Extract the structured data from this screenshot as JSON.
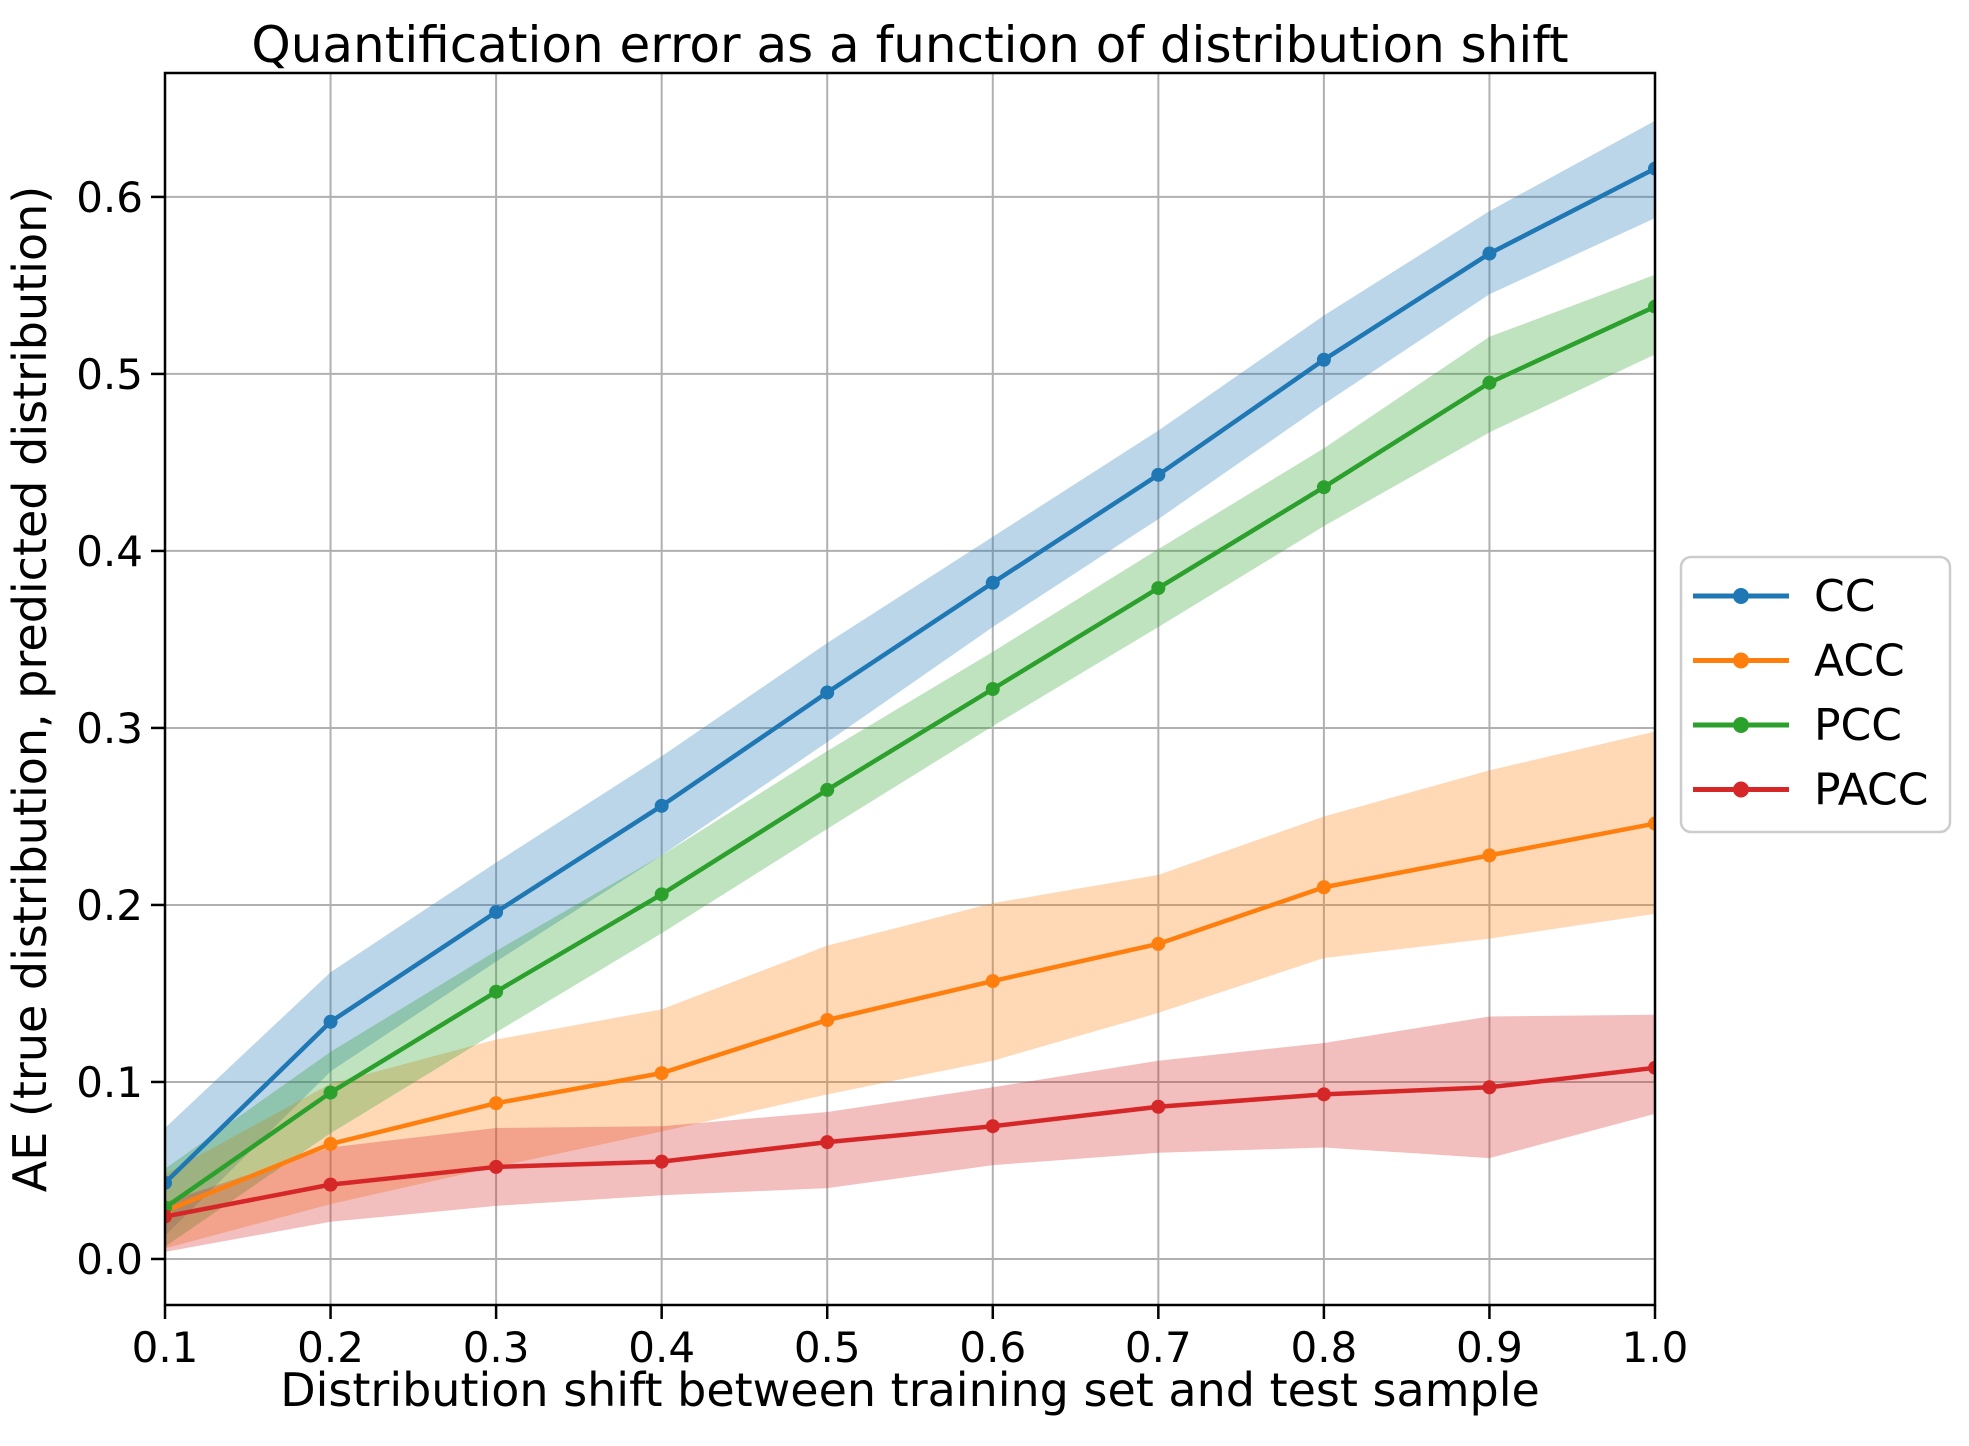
{
  "figure": {
    "title": "Quantification error as a function of distribution shift"
  },
  "axes": {
    "xlabel": "Distribution shift between training set and test sample",
    "ylabel": "AE (true distribution, predicted distribution)",
    "xticks": [
      0.1,
      0.2,
      0.3,
      0.4,
      0.5,
      0.6,
      0.7,
      0.8,
      0.9,
      1.0
    ],
    "xtick_labels": [
      "0.1",
      "0.2",
      "0.3",
      "0.4",
      "0.5",
      "0.6",
      "0.7",
      "0.8",
      "0.9",
      "1.0"
    ],
    "yticks": [
      0.0,
      0.1,
      0.2,
      0.3,
      0.4,
      0.5,
      0.6
    ],
    "ytick_labels": [
      "0.0",
      "0.1",
      "0.2",
      "0.3",
      "0.4",
      "0.5",
      "0.6"
    ],
    "xlim": [
      0.1,
      1.0
    ],
    "ylim": [
      -0.026,
      0.67
    ],
    "grid": true,
    "grid_color": "#b0b0b0",
    "spine_color": "#000000"
  },
  "legend": {
    "position": "outside center-right",
    "entries": [
      {
        "label": "CC",
        "color": "#1f77b4"
      },
      {
        "label": "ACC",
        "color": "#ff7f0e"
      },
      {
        "label": "PCC",
        "color": "#2ca02c"
      },
      {
        "label": "PACC",
        "color": "#d62728"
      }
    ]
  },
  "chart_data": {
    "type": "line",
    "title": "Quantification error as a function of distribution shift",
    "xlabel": "Distribution shift between training set and test sample",
    "ylabel": "AE (true distribution, predicted distribution)",
    "x": [
      0.1,
      0.2,
      0.3,
      0.4,
      0.5,
      0.6,
      0.7,
      0.8,
      0.9,
      1.0
    ],
    "xlim": [
      0.1,
      1.0
    ],
    "ylim": [
      -0.026,
      0.67
    ],
    "grid": true,
    "legend_position": "center right, outside axes",
    "band_opacity": 0.3,
    "series": [
      {
        "name": "CC",
        "color": "#1f77b4",
        "values": [
          0.043,
          0.134,
          0.196,
          0.256,
          0.32,
          0.382,
          0.443,
          0.508,
          0.568,
          0.616
        ],
        "ci_low": [
          0.013,
          0.106,
          0.168,
          0.228,
          0.292,
          0.357,
          0.418,
          0.483,
          0.545,
          0.588
        ],
        "ci_high": [
          0.074,
          0.162,
          0.224,
          0.284,
          0.348,
          0.408,
          0.468,
          0.533,
          0.592,
          0.643
        ]
      },
      {
        "name": "ACC",
        "color": "#ff7f0e",
        "values": [
          0.027,
          0.065,
          0.088,
          0.105,
          0.135,
          0.157,
          0.178,
          0.21,
          0.228,
          0.246
        ],
        "ci_low": [
          0.006,
          0.031,
          0.052,
          0.072,
          0.093,
          0.112,
          0.139,
          0.17,
          0.181,
          0.195
        ],
        "ci_high": [
          0.048,
          0.099,
          0.124,
          0.141,
          0.177,
          0.201,
          0.217,
          0.25,
          0.276,
          0.298
        ]
      },
      {
        "name": "PCC",
        "color": "#2ca02c",
        "values": [
          0.029,
          0.094,
          0.151,
          0.206,
          0.265,
          0.322,
          0.379,
          0.436,
          0.495,
          0.538
        ],
        "ci_low": [
          0.007,
          0.071,
          0.128,
          0.184,
          0.243,
          0.301,
          0.357,
          0.414,
          0.467,
          0.511
        ],
        "ci_high": [
          0.051,
          0.117,
          0.174,
          0.228,
          0.287,
          0.343,
          0.401,
          0.458,
          0.521,
          0.556
        ]
      },
      {
        "name": "PACC",
        "color": "#d62728",
        "values": [
          0.024,
          0.042,
          0.052,
          0.055,
          0.066,
          0.075,
          0.086,
          0.093,
          0.097,
          0.108
        ],
        "ci_low": [
          0.004,
          0.021,
          0.03,
          0.036,
          0.04,
          0.053,
          0.06,
          0.063,
          0.057,
          0.082
        ],
        "ci_high": [
          0.032,
          0.063,
          0.074,
          0.075,
          0.083,
          0.097,
          0.112,
          0.122,
          0.137,
          0.138
        ]
      }
    ]
  }
}
